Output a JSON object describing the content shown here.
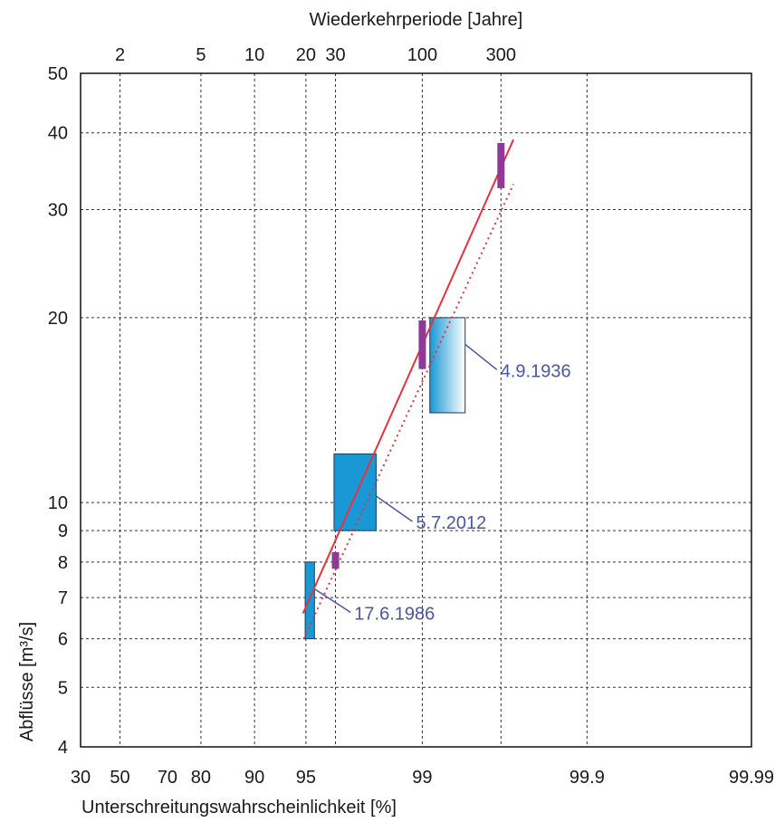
{
  "chart_data": {
    "type": "scatter",
    "top_axis_title": "Wiederkehrperiode [Jahre]",
    "xlabel": "Unterschreitungswahrscheinlichkeit [%]",
    "ylabel": "Abflüsse [m³/s]",
    "x_scale": "probability (Gumbel)",
    "y_scale": "log",
    "ylim": [
      4,
      50
    ],
    "y_ticks": [
      4,
      5,
      6,
      7,
      8,
      9,
      10,
      20,
      30,
      40,
      50
    ],
    "x_ticks": [
      "30",
      "50",
      "70",
      "80",
      "90",
      "95",
      "99",
      "99.9",
      "99.99"
    ],
    "x_tick_values": [
      30,
      50,
      70,
      80,
      90,
      95,
      99,
      99.9,
      99.99
    ],
    "top_ticks": [
      "2",
      "5",
      "10",
      "20",
      "30",
      "100",
      "300"
    ],
    "top_tick_values": [
      2,
      5,
      10,
      20,
      30,
      100,
      300
    ],
    "vertical_gridlines_at_return_period": [
      2,
      5,
      10,
      20,
      30,
      100,
      300
    ],
    "grid": true,
    "colors": {
      "line": "#e8323c",
      "box": "#1a98d5",
      "bar": "#8e3a96",
      "annotation": "#4a56a6"
    },
    "fit_line": {
      "style": "solid",
      "points": [
        [
          94.8,
          6.6
        ],
        [
          99.72,
          39
        ]
      ]
    },
    "fit_line_dotted": {
      "style": "dotted",
      "points": [
        [
          94.85,
          6.0
        ],
        [
          99.72,
          33
        ]
      ]
    },
    "events": [
      {
        "label": "17.6.1986",
        "p_range": [
          94.95,
          95.55
        ],
        "q_range": [
          6.0,
          8.0
        ]
      },
      {
        "label": "5.7.2012",
        "p_range": [
          96.6,
          98.1
        ],
        "q_range": [
          9.0,
          12.0
        ]
      },
      {
        "label": "4.9.1936",
        "p_range": [
          99.1,
          99.45
        ],
        "q_range": [
          14.0,
          20.0
        ],
        "gradient": true
      }
    ],
    "bars": [
      {
        "T": 30,
        "q_range": [
          7.8,
          8.3
        ]
      },
      {
        "T": 100,
        "q_range": [
          16.5,
          19.8
        ]
      },
      {
        "T": 300,
        "q_range": [
          32.5,
          38.5
        ]
      }
    ]
  }
}
